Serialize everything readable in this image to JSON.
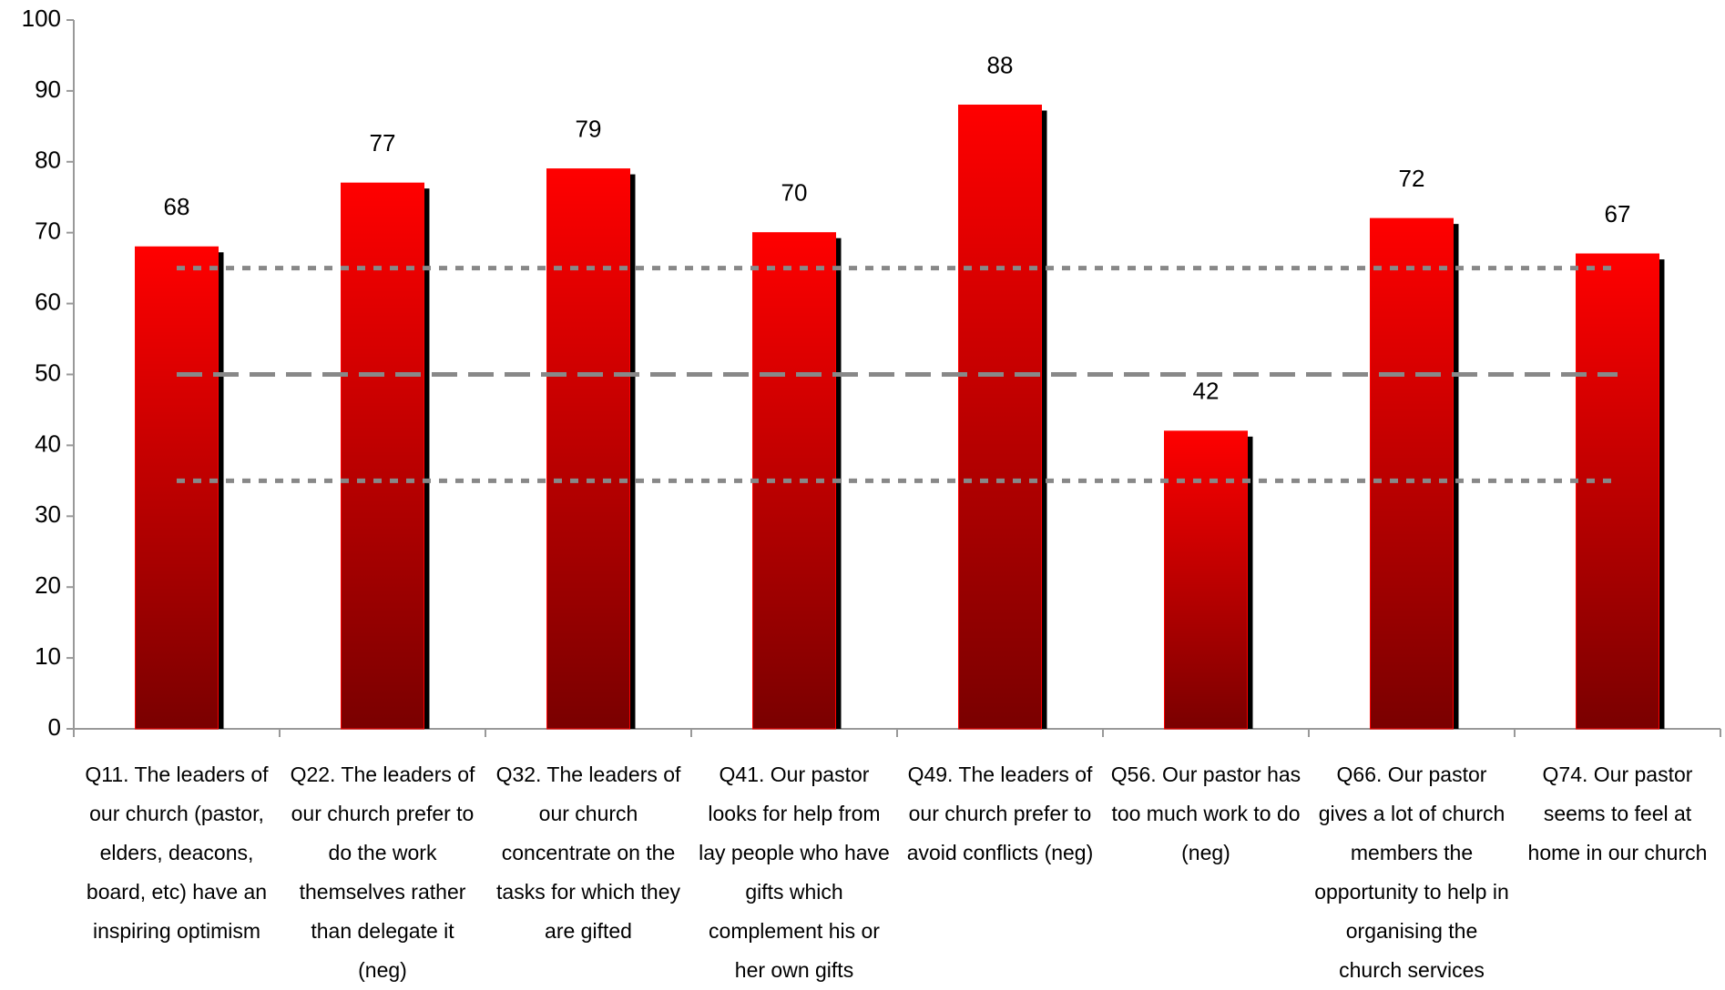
{
  "chart_data": {
    "type": "bar",
    "categories": [
      "Q11. The leaders of our church (pastor, elders, deacons, board, etc) have an inspiring optimism",
      "Q22. The leaders of our church prefer to do the work themselves rather than delegate it (neg)",
      "Q32. The leaders of our church concentrate on the tasks for which they are gifted",
      "Q41. Our pastor looks for help from lay people who have gifts which complement his or her own gifts",
      "Q49. The leaders of our church prefer to avoid conflicts (neg)",
      "Q56. Our pastor has too much work to do (neg)",
      "Q66. Our pastor gives a lot of church members the opportunity to help in organising the church services",
      "Q74. Our pastor seems to feel at home in our church"
    ],
    "values": [
      68,
      77,
      79,
      70,
      88,
      42,
      72,
      67
    ],
    "color": "#ff0000",
    "ylim": [
      0,
      100
    ],
    "yticks": [
      0,
      10,
      20,
      30,
      40,
      50,
      60,
      70,
      80,
      90,
      100
    ],
    "grid": false,
    "reference_lines": [
      {
        "value": 65,
        "style": "dotted"
      },
      {
        "value": 50,
        "style": "dashed"
      },
      {
        "value": 35,
        "style": "dotted"
      }
    ]
  }
}
